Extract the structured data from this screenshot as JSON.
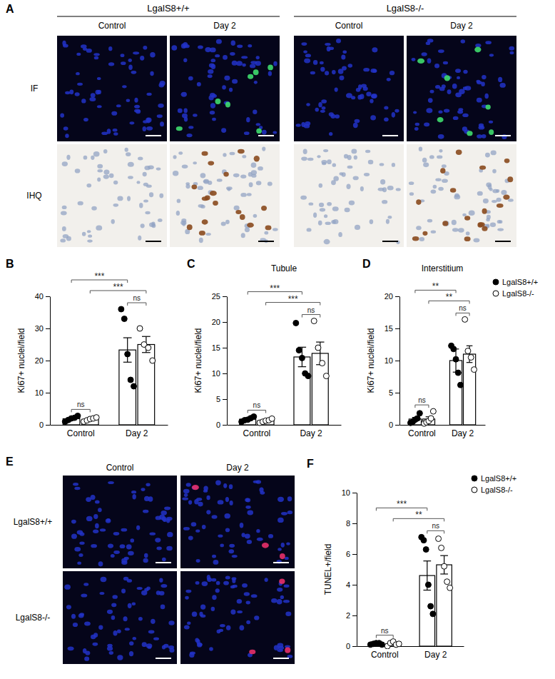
{
  "image_panels": [
    {
      "panel": "A",
      "column_groups": [
        {
          "label": "LgalS8+/+",
          "columns": [
            "Control",
            "Day 2"
          ]
        },
        {
          "label": "LgalS8-/-",
          "columns": [
            "Control",
            "Day 2"
          ]
        }
      ],
      "rows": [
        "IF",
        "IHQ"
      ]
    },
    {
      "panel": "E",
      "columns": [
        "Control",
        "Day 2"
      ],
      "rows": [
        "LgalS8+/+",
        "LgalS8-/-"
      ]
    }
  ],
  "chart_data": [
    {
      "panel": "B",
      "type": "bar",
      "y_label": "Ki67+ nuclei/field",
      "categories": [
        "Control",
        "Day 2"
      ],
      "ylim": [
        0,
        40
      ],
      "yticks": [
        0,
        10,
        20,
        30,
        40
      ],
      "series": [
        {
          "name": "LgalS8+/+",
          "color": "#000000",
          "values": [
            1.9,
            23.3
          ],
          "errors": [
            0.3,
            3.8
          ],
          "points": [
            [
              1.0,
              1.5,
              2.0,
              2.2,
              2.8
            ],
            [
              36,
              33,
              22,
              14,
              12
            ]
          ]
        },
        {
          "name": "LgalS8-/-",
          "color": "#ffffff",
          "values": [
            1.7,
            25
          ],
          "errors": [
            0.23,
            2.5
          ],
          "points": [
            [
              1.0,
              1.4,
              1.8,
              2.0,
              2.3
            ],
            [
              30,
              25,
              24,
              20
            ]
          ]
        }
      ],
      "comparisons": [
        {
          "a": [
            "Control",
            "LgalS8+/+"
          ],
          "b": [
            "Day 2",
            "LgalS8+/+"
          ],
          "label": "***"
        },
        {
          "a": [
            "Control",
            "LgalS8-/-"
          ],
          "b": [
            "Day 2",
            "LgalS8-/-"
          ],
          "label": "***"
        },
        {
          "a": [
            "Control",
            "LgalS8+/+"
          ],
          "b": [
            "Control",
            "LgalS8-/-"
          ],
          "label": "ns"
        },
        {
          "a": [
            "Day 2",
            "LgalS8+/+"
          ],
          "b": [
            "Day 2",
            "LgalS8-/-"
          ],
          "label": "ns"
        }
      ]
    },
    {
      "panel": "C",
      "type": "bar",
      "title": "Tubule",
      "y_label": "Ki67+ nuclei/field",
      "categories": [
        "Control",
        "Day 2"
      ],
      "ylim": [
        0,
        25
      ],
      "yticks": [
        0,
        5,
        10,
        15,
        20,
        25
      ],
      "series": [
        {
          "name": "LgalS8+/+",
          "color": "#000000",
          "values": [
            1.1,
            13.2
          ],
          "errors": [
            0.2,
            1.9
          ],
          "points": [
            [
              0.6,
              0.9,
              1.0,
              1.3,
              1.6
            ],
            [
              19.8,
              14.5,
              13,
              10,
              9.5
            ]
          ]
        },
        {
          "name": "LgalS8-/-",
          "color": "#ffffff",
          "values": [
            0.8,
            13.9
          ],
          "errors": [
            0.15,
            2.2
          ],
          "points": [
            [
              0.4,
              0.6,
              0.8,
              0.9,
              1.2
            ],
            [
              20.2,
              15,
              12,
              9.5
            ]
          ]
        }
      ],
      "comparisons": [
        {
          "a": [
            "Control",
            "LgalS8+/+"
          ],
          "b": [
            "Day 2",
            "LgalS8+/+"
          ],
          "label": "***"
        },
        {
          "a": [
            "Control",
            "LgalS8-/-"
          ],
          "b": [
            "Day 2",
            "LgalS8-/-"
          ],
          "label": "***"
        },
        {
          "a": [
            "Control",
            "LgalS8+/+"
          ],
          "b": [
            "Control",
            "LgalS8-/-"
          ],
          "label": "ns"
        },
        {
          "a": [
            "Day 2",
            "LgalS8+/+"
          ],
          "b": [
            "Day 2",
            "LgalS8-/-"
          ],
          "label": "ns"
        }
      ]
    },
    {
      "panel": "D",
      "type": "bar",
      "title": "Interstitium",
      "y_label": "Ki67+ nuclei/field",
      "categories": [
        "Control",
        "Day 2"
      ],
      "ylim": [
        0,
        20
      ],
      "yticks": [
        0,
        5,
        10,
        15,
        20
      ],
      "legend": "right",
      "series": [
        {
          "name": "LgalS8+/+",
          "color": "#000000",
          "values": [
            0.9,
            10.0
          ],
          "errors": [
            0.25,
            1.8
          ],
          "points": [
            [
              0.3,
              0.5,
              0.8,
              1.0,
              1.8
            ],
            [
              12.3,
              11.8,
              10.2,
              8.1,
              6.2
            ]
          ]
        },
        {
          "name": "LgalS8-/-",
          "color": "#ffffff",
          "values": [
            0.9,
            11.0
          ],
          "errors": [
            0.35,
            1.3
          ],
          "points": [
            [
              0.2,
              0.4,
              0.6,
              1.0,
              2.1
            ],
            [
              16.4,
              11.5,
              10.5,
              8.6
            ]
          ]
        }
      ],
      "comparisons": [
        {
          "a": [
            "Control",
            "LgalS8+/+"
          ],
          "b": [
            "Day 2",
            "LgalS8+/+"
          ],
          "label": "**"
        },
        {
          "a": [
            "Control",
            "LgalS8-/-"
          ],
          "b": [
            "Day 2",
            "LgalS8-/-"
          ],
          "label": "**"
        },
        {
          "a": [
            "Control",
            "LgalS8+/+"
          ],
          "b": [
            "Control",
            "LgalS8-/-"
          ],
          "label": "ns"
        },
        {
          "a": [
            "Day 2",
            "LgalS8+/+"
          ],
          "b": [
            "Day 2",
            "LgalS8-/-"
          ],
          "label": "ns"
        }
      ]
    },
    {
      "panel": "F",
      "type": "bar",
      "y_label": "TUNEL+/field",
      "categories": [
        "Control",
        "Day 2"
      ],
      "ylim": [
        0,
        10
      ],
      "yticks": [
        0,
        2,
        4,
        6,
        8,
        10
      ],
      "legend": "right",
      "series": [
        {
          "name": "LgalS8+/+",
          "color": "#000000",
          "values": [
            0.15,
            4.6
          ],
          "errors": [
            0.03,
            0.95
          ],
          "points": [
            [
              0.1,
              0.15,
              0.2,
              0.2,
              0.1
            ],
            [
              7.1,
              6.9,
              6.3,
              4.0,
              2.6,
              2.1
            ]
          ]
        },
        {
          "name": "LgalS8-/-",
          "color": "#ffffff",
          "values": [
            0.15,
            5.3
          ],
          "errors": [
            0.05,
            0.6
          ],
          "points": [
            [
              0.0,
              0.2,
              0.3,
              0.1,
              0.15
            ],
            [
              7.0,
              6.4,
              5.2,
              4.2,
              3.8
            ]
          ]
        }
      ],
      "comparisons": [
        {
          "a": [
            "Control",
            "LgalS8+/+"
          ],
          "b": [
            "Day 2",
            "LgalS8+/+"
          ],
          "label": "***"
        },
        {
          "a": [
            "Control",
            "LgalS8-/-"
          ],
          "b": [
            "Day 2",
            "LgalS8-/-"
          ],
          "label": "**"
        },
        {
          "a": [
            "Control",
            "LgalS8+/+"
          ],
          "b": [
            "Control",
            "LgalS8-/-"
          ],
          "label": "ns"
        },
        {
          "a": [
            "Day 2",
            "LgalS8+/+"
          ],
          "b": [
            "Day 2",
            "LgalS8-/-"
          ],
          "label": "ns"
        }
      ]
    }
  ]
}
